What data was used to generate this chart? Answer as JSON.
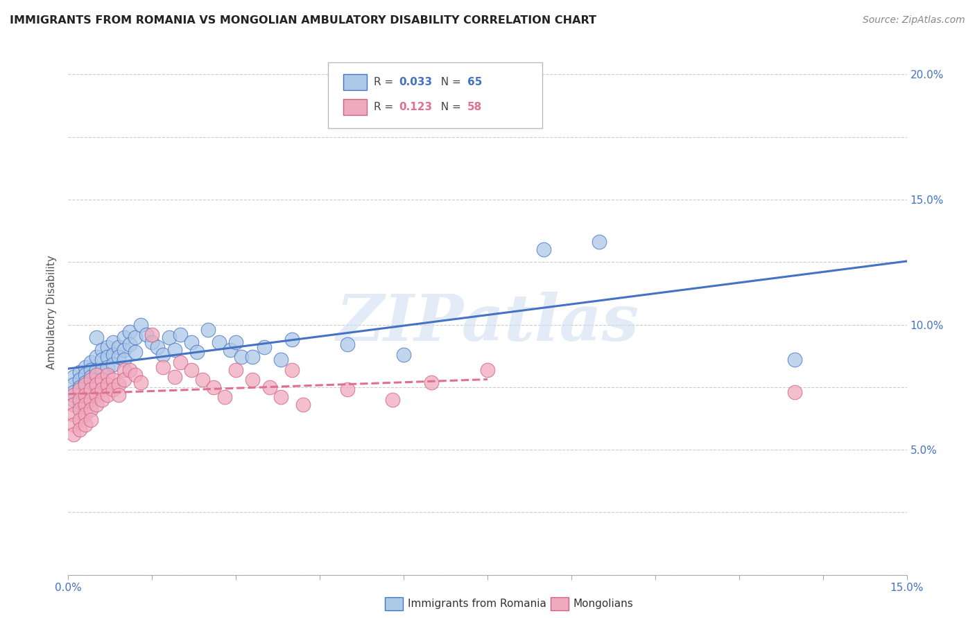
{
  "title": "IMMIGRANTS FROM ROMANIA VS MONGOLIAN AMBULATORY DISABILITY CORRELATION CHART",
  "source": "Source: ZipAtlas.com",
  "ylabel": "Ambulatory Disability",
  "xlim": [
    0.0,
    0.15
  ],
  "ylim": [
    0.0,
    0.21
  ],
  "xticks": [
    0.0,
    0.015,
    0.03,
    0.045,
    0.06,
    0.075,
    0.09,
    0.105,
    0.12,
    0.135,
    0.15
  ],
  "xticklabels": [
    "0.0%",
    "",
    "",
    "",
    "",
    "",
    "",
    "",
    "",
    "",
    "15.0%"
  ],
  "yticks": [
    0.0,
    0.025,
    0.05,
    0.075,
    0.1,
    0.125,
    0.15,
    0.175,
    0.2
  ],
  "yticklabels": [
    "",
    "",
    "5.0%",
    "",
    "10.0%",
    "",
    "15.0%",
    "",
    "20.0%"
  ],
  "romania_R": "0.033",
  "romania_N": "65",
  "mongolia_R": "0.123",
  "mongolia_N": "58",
  "romania_color": "#adc9e8",
  "mongolia_color": "#f0aabf",
  "romania_line_color": "#4472c4",
  "mongolia_line_color": "#e07090",
  "mongolia_edge_color": "#d06080",
  "watermark_text": "ZIPatlas",
  "grid_color": "#cccccc",
  "background_color": "#ffffff",
  "romania_scatter_x": [
    0.001,
    0.001,
    0.001,
    0.001,
    0.002,
    0.002,
    0.002,
    0.002,
    0.002,
    0.003,
    0.003,
    0.003,
    0.003,
    0.003,
    0.004,
    0.004,
    0.004,
    0.004,
    0.004,
    0.005,
    0.005,
    0.005,
    0.005,
    0.006,
    0.006,
    0.006,
    0.007,
    0.007,
    0.007,
    0.008,
    0.008,
    0.008,
    0.009,
    0.009,
    0.01,
    0.01,
    0.01,
    0.011,
    0.011,
    0.012,
    0.012,
    0.013,
    0.014,
    0.015,
    0.016,
    0.017,
    0.018,
    0.019,
    0.02,
    0.022,
    0.023,
    0.025,
    0.027,
    0.029,
    0.03,
    0.031,
    0.033,
    0.035,
    0.038,
    0.04,
    0.05,
    0.06,
    0.085,
    0.095,
    0.13
  ],
  "romania_scatter_y": [
    0.079,
    0.076,
    0.073,
    0.07,
    0.081,
    0.078,
    0.075,
    0.072,
    0.068,
    0.083,
    0.08,
    0.077,
    0.073,
    0.069,
    0.085,
    0.082,
    0.079,
    0.075,
    0.071,
    0.095,
    0.087,
    0.082,
    0.078,
    0.09,
    0.086,
    0.082,
    0.091,
    0.087,
    0.083,
    0.093,
    0.088,
    0.084,
    0.091,
    0.087,
    0.095,
    0.09,
    0.086,
    0.097,
    0.092,
    0.095,
    0.089,
    0.1,
    0.096,
    0.093,
    0.091,
    0.088,
    0.095,
    0.09,
    0.096,
    0.093,
    0.089,
    0.098,
    0.093,
    0.09,
    0.093,
    0.087,
    0.087,
    0.091,
    0.086,
    0.094,
    0.092,
    0.088,
    0.13,
    0.133,
    0.086
  ],
  "mongolia_scatter_x": [
    0.001,
    0.001,
    0.001,
    0.001,
    0.001,
    0.002,
    0.002,
    0.002,
    0.002,
    0.002,
    0.003,
    0.003,
    0.003,
    0.003,
    0.003,
    0.004,
    0.004,
    0.004,
    0.004,
    0.004,
    0.005,
    0.005,
    0.005,
    0.005,
    0.006,
    0.006,
    0.006,
    0.007,
    0.007,
    0.007,
    0.008,
    0.008,
    0.009,
    0.009,
    0.01,
    0.01,
    0.011,
    0.012,
    0.013,
    0.015,
    0.017,
    0.019,
    0.02,
    0.022,
    0.024,
    0.026,
    0.028,
    0.03,
    0.033,
    0.036,
    0.038,
    0.04,
    0.042,
    0.05,
    0.058,
    0.065,
    0.075,
    0.13
  ],
  "mongolia_scatter_y": [
    0.072,
    0.068,
    0.064,
    0.06,
    0.056,
    0.074,
    0.07,
    0.066,
    0.062,
    0.058,
    0.076,
    0.072,
    0.068,
    0.064,
    0.06,
    0.078,
    0.074,
    0.07,
    0.066,
    0.062,
    0.08,
    0.076,
    0.072,
    0.068,
    0.078,
    0.074,
    0.07,
    0.08,
    0.076,
    0.072,
    0.078,
    0.074,
    0.076,
    0.072,
    0.082,
    0.078,
    0.082,
    0.08,
    0.077,
    0.096,
    0.083,
    0.079,
    0.085,
    0.082,
    0.078,
    0.075,
    0.071,
    0.082,
    0.078,
    0.075,
    0.071,
    0.082,
    0.068,
    0.074,
    0.07,
    0.077,
    0.082,
    0.073
  ]
}
